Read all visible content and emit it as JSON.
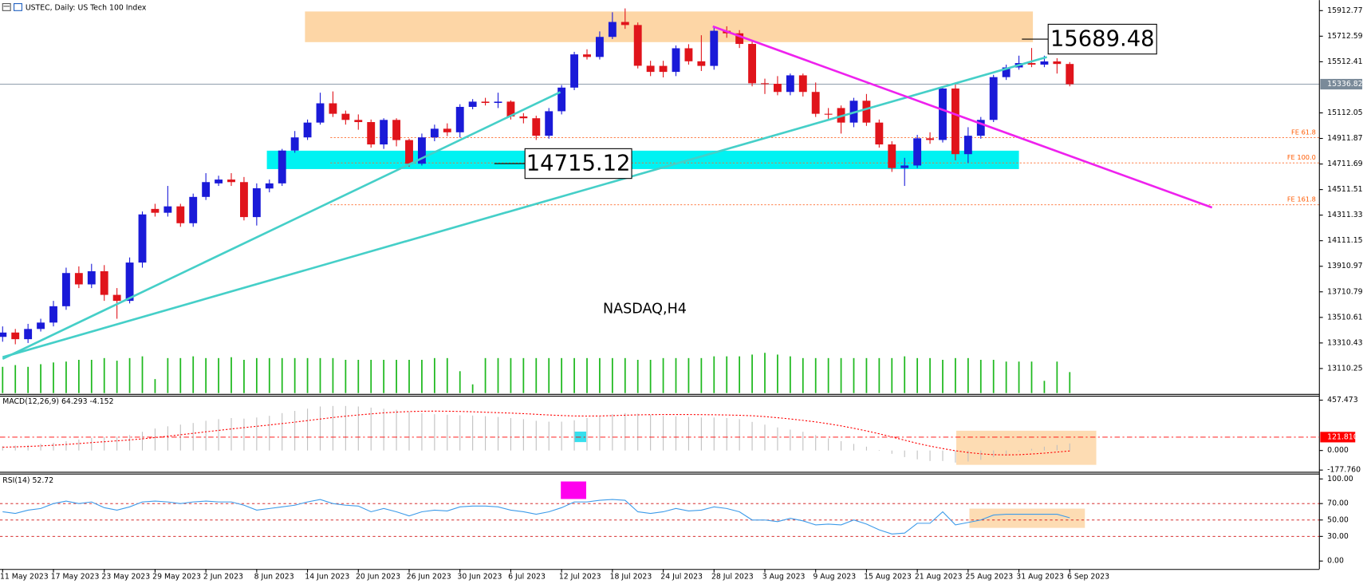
{
  "chart_data": {
    "type": "candlestick",
    "title": "USTEC, Daily: US Tech 100 Index",
    "categories": [
      "11 May 2023",
      null,
      null,
      null,
      "17 May 2023",
      null,
      null,
      null,
      "23 May 2023",
      null,
      null,
      null,
      "29 May 2023",
      null,
      null,
      null,
      "2 Jun 2023",
      null,
      null,
      null,
      "8 Jun 2023",
      null,
      null,
      null,
      "14 Jun 2023",
      null,
      null,
      null,
      "20 Jun 2023",
      null,
      null,
      null,
      "26 Jun 2023",
      null,
      null,
      null,
      "30 Jun 2023",
      null,
      null,
      null,
      "6 Jul 2023",
      null,
      null,
      null,
      "12 Jul 2023",
      null,
      null,
      null,
      "18 Jul 2023",
      null,
      null,
      null,
      "24 Jul 2023",
      null,
      null,
      null,
      "28 Jul 2023",
      null,
      null,
      null,
      "3 Aug 2023",
      null,
      null,
      null,
      "9 Aug 2023",
      null,
      null,
      null,
      "15 Aug 2023",
      null,
      null,
      null,
      "21 Aug 2023",
      null,
      null,
      null,
      "25 Aug 2023",
      null,
      null,
      null,
      "31 Aug 2023",
      null,
      null,
      null,
      "6 Sep 2023"
    ],
    "open": [
      13358,
      13392,
      13340,
      13420,
      13470,
      13598,
      13858,
      13769,
      13872,
      13687,
      13640,
      13940,
      14360,
      14330,
      14380,
      14248,
      14454,
      14560,
      14590,
      14570,
      14296,
      14520,
      14560,
      14817,
      14920,
      15036,
      15187,
      15105,
      15057,
      15040,
      14865,
      15057,
      14899,
      14714,
      14920,
      14988,
      14960,
      15159,
      15200,
      15190,
      15200,
      15084,
      15070,
      14933,
      15125,
      15310,
      15570,
      15550,
      15707,
      15824,
      15800,
      15481,
      15480,
      15433,
      15618,
      15516,
      15480,
      15755,
      15735,
      15652,
      15344,
      15340,
      15276,
      15406,
      15276,
      15105,
      15150,
      15036,
      15207,
      15036,
      14865,
      14680,
      14700,
      14913,
      14900,
      15303,
      14789,
      14933,
      15057,
      15392,
      15468,
      15502,
      15490,
      15515,
      15495
    ],
    "high": [
      13440,
      13420,
      13460,
      13500,
      13640,
      13900,
      13910,
      13930,
      13920,
      13740,
      13980,
      14340,
      14400,
      14540,
      14400,
      14480,
      14640,
      14620,
      14640,
      14610,
      14560,
      14590,
      14830,
      14970,
      15060,
      15270,
      15280,
      15130,
      15100,
      15060,
      15070,
      15070,
      14910,
      14950,
      15020,
      15030,
      15180,
      15220,
      15230,
      15270,
      15210,
      15110,
      15090,
      15150,
      15330,
      15590,
      15610,
      15750,
      15900,
      15930,
      15820,
      15520,
      15520,
      15640,
      15650,
      15720,
      15790,
      15790,
      15760,
      15670,
      15380,
      15400,
      15420,
      15420,
      15350,
      15150,
      15170,
      15230,
      15260,
      15060,
      14890,
      14760,
      14940,
      14960,
      15320,
      15350,
      15000,
      15080,
      15410,
      15490,
      15560,
      15620,
      15560,
      15540,
      15510
    ],
    "low": [
      13320,
      13300,
      13310,
      13400,
      13440,
      13570,
      13740,
      13740,
      13640,
      13500,
      13620,
      13900,
      14300,
      14300,
      14220,
      14220,
      14430,
      14540,
      14540,
      14270,
      14230,
      14490,
      14540,
      14800,
      14900,
      15020,
      15080,
      15020,
      14980,
      14840,
      14830,
      14850,
      14690,
      14700,
      14890,
      14930,
      14920,
      15140,
      15170,
      15150,
      15060,
      15030,
      14900,
      14910,
      15100,
      15290,
      15530,
      15530,
      15690,
      15770,
      15460,
      15400,
      15390,
      15400,
      15490,
      15440,
      15450,
      15700,
      15620,
      15320,
      15260,
      15250,
      15250,
      15240,
      15080,
      15050,
      14950,
      15000,
      15010,
      14840,
      14650,
      14540,
      14680,
      14870,
      14880,
      14740,
      14720,
      14910,
      15040,
      15370,
      15450,
      15470,
      15470,
      15420,
      15320
    ],
    "close": [
      13392,
      13340,
      13420,
      13470,
      13598,
      13858,
      13769,
      13872,
      13687,
      13640,
      13940,
      14317,
      14330,
      14380,
      14248,
      14454,
      14570,
      14590,
      14570,
      14296,
      14522,
      14560,
      14817,
      14920,
      15036,
      15187,
      15105,
      15057,
      15040,
      14865,
      15057,
      14899,
      14714,
      14920,
      14988,
      14960,
      15159,
      15200,
      15190,
      15200,
      15084,
      15070,
      14933,
      15125,
      15310,
      15570,
      15550,
      15707,
      15824,
      15800,
      15481,
      15433,
      15433,
      15618,
      15516,
      15480,
      15755,
      15735,
      15652,
      15344,
      15340,
      15276,
      15406,
      15276,
      15105,
      15100,
      15036,
      15207,
      15036,
      14865,
      14680,
      14700,
      14913,
      14900,
      15303,
      14789,
      14933,
      15057,
      15392,
      15468,
      15502,
      15490,
      15515,
      15495,
      15336.82
    ],
    "up_color": "#1a1ad8",
    "down_color": "#e0141b",
    "volume": [
      30,
      32,
      30,
      33,
      35,
      36,
      38,
      38,
      40,
      37,
      40,
      42,
      16,
      40,
      40,
      42,
      40,
      40,
      41,
      38,
      40,
      40,
      40,
      40,
      40,
      40,
      40,
      38,
      38,
      38,
      38,
      38,
      38,
      38,
      40,
      40,
      25,
      10,
      40,
      40,
      40,
      40,
      40,
      40,
      40,
      40,
      40,
      40,
      40,
      40,
      38,
      38,
      40,
      40,
      40,
      40,
      42,
      42,
      42,
      44,
      46,
      44,
      42,
      40,
      40,
      40,
      40,
      40,
      40,
      40,
      40,
      42,
      40,
      40,
      38,
      40,
      40,
      38,
      38,
      36,
      36,
      36,
      14,
      36,
      24
    ],
    "volume_color": "#1fb91f",
    "ylim": [
      12911,
      15995
    ],
    "yticks": [
      15912.77,
      15712.59,
      15512.41,
      15112.05,
      14911.87,
      14711.69,
      14511.51,
      14311.33,
      14111.15,
      13910.97,
      13710.79,
      13510.61,
      13310.43,
      13110.25
    ],
    "last_price": 15336.82,
    "annotations": {
      "watermark": "NASDAQ,H4",
      "zones": [
        {
          "x": [
            23.8,
            81.1
          ],
          "y": [
            15666,
            15906
          ],
          "color": "#fdd6a6"
        },
        {
          "x": [
            20.8,
            80
          ],
          "y": [
            14672,
            14816
          ],
          "color": "#00f2f2"
        }
      ],
      "trendlines": [
        {
          "from": [
            0,
            13186
          ],
          "to": [
            43.9,
            15275
          ],
          "color": "#45cfc8"
        },
        {
          "from": [
            0,
            13199
          ],
          "to": [
            82.2,
            15549
          ],
          "color": "#45cfc8"
        },
        {
          "from": [
            55.9,
            15789
          ],
          "to": [
            95.2,
            14371
          ],
          "color": "#ee22ee"
        }
      ],
      "levels": [
        {
          "label": "FE 61.8",
          "value": 14919,
          "start": 25.8
        },
        {
          "label": "FE 100.0",
          "value": 14720,
          "start": 25.8
        },
        {
          "label": "FE 161.8",
          "value": 14392,
          "start": 25.8
        }
      ],
      "price_labels": [
        15689.48,
        14715.12
      ]
    },
    "macd": {
      "title": "MACD(12,26,9) 64.293 -4.152",
      "histogram": [
        40,
        45,
        50,
        60,
        70,
        85,
        100,
        115,
        120,
        125,
        140,
        170,
        200,
        220,
        235,
        250,
        270,
        285,
        295,
        290,
        300,
        315,
        340,
        360,
        380,
        400,
        405,
        405,
        400,
        390,
        380,
        370,
        350,
        340,
        330,
        325,
        320,
        318,
        312,
        305,
        295,
        285,
        270,
        262,
        262,
        275,
        295,
        310,
        330,
        340,
        335,
        325,
        315,
        310,
        305,
        300,
        300,
        295,
        285,
        260,
        235,
        210,
        190,
        170,
        140,
        110,
        85,
        60,
        35,
        5,
        -30,
        -60,
        -80,
        -95,
        -95,
        -110,
        -100,
        -85,
        -60,
        -35,
        -10,
        15,
        35,
        50,
        64.293
      ],
      "signal": [
        30,
        33,
        37,
        42,
        48,
        55,
        63,
        72,
        80,
        88,
        96,
        106,
        118,
        130,
        143,
        156,
        170,
        183,
        196,
        208,
        220,
        232,
        245,
        258,
        272,
        286,
        300,
        312,
        323,
        333,
        342,
        349,
        354,
        357,
        358,
        357,
        355,
        352,
        348,
        344,
        340,
        335,
        329,
        323,
        318,
        314,
        313,
        314,
        317,
        321,
        324,
        326,
        327,
        327,
        327,
        326,
        325,
        323,
        320,
        316,
        308,
        298,
        287,
        274,
        260,
        243,
        224,
        202,
        178,
        152,
        123,
        94,
        65,
        40,
        18,
        -2,
        -18,
        -30,
        -38,
        -40,
        -38,
        -32,
        -24,
        -14,
        -4.152
      ],
      "histogram_color": "#c0c0c0",
      "signal_color": "#ff0000",
      "level": {
        "value": 121.81,
        "label": "121.810"
      },
      "ylim": [
        -194,
        498
      ],
      "yticks": [
        457.473,
        {
          "value": 0,
          "label": "0.000"
        },
        {
          "value": -177.76,
          "label": "-177.760"
        }
      ]
    },
    "rsi": {
      "title": "RSI(14) 52.72",
      "values": [
        60,
        58,
        62,
        64,
        70,
        73,
        70,
        72,
        65,
        62,
        66,
        72,
        73,
        72,
        70,
        72,
        73,
        72,
        72,
        68,
        62,
        64,
        66,
        68,
        72,
        75,
        70,
        68,
        67,
        60,
        64,
        60,
        55,
        60,
        62,
        61,
        66,
        67,
        67,
        66,
        62,
        60,
        57,
        60,
        65,
        72,
        72,
        74,
        75,
        74,
        60,
        58,
        60,
        64,
        61,
        62,
        66,
        64,
        60,
        50,
        50,
        48,
        52,
        49,
        44,
        45,
        44,
        50,
        45,
        38,
        33,
        34,
        46,
        46,
        60,
        44,
        47,
        50,
        56,
        57,
        57,
        57,
        57,
        57,
        52.72
      ],
      "color": "#3d9be9",
      "ylim": [
        -9.7,
        106.5
      ],
      "yticks": [
        {
          "value": 100,
          "label": "100.00"
        },
        {
          "value": 70,
          "label": "70.00"
        },
        {
          "value": 50,
          "label": "50.00"
        },
        {
          "value": 30,
          "label": "30.00"
        },
        {
          "value": 0,
          "label": "0.00"
        }
      ],
      "levels": [
        70,
        50,
        30
      ]
    }
  }
}
